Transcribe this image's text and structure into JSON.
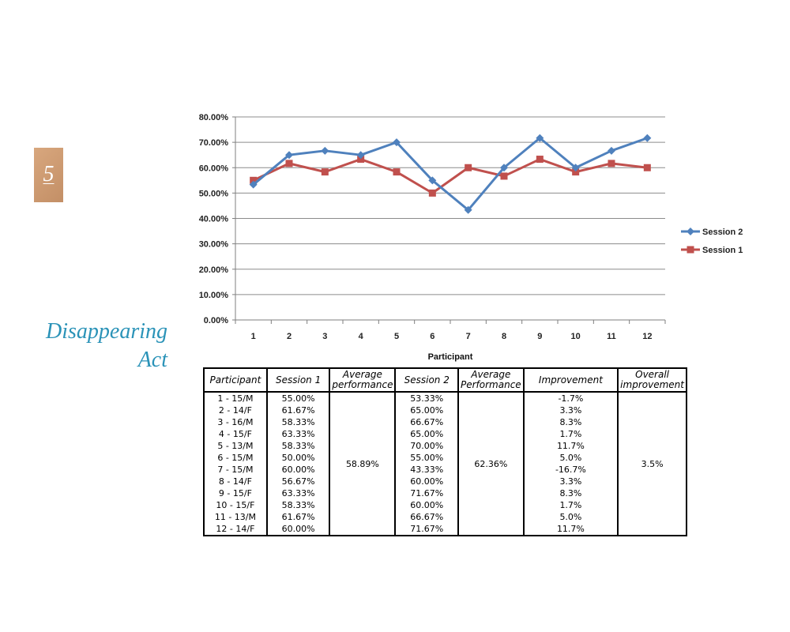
{
  "slide_number": "5",
  "title_lines": [
    "Disappearing",
    "Act"
  ],
  "colors": {
    "session2": "#4f81bd",
    "session1": "#c0504d",
    "title": "#2b93b8"
  },
  "chart_data": {
    "type": "line",
    "title": "",
    "xlabel": "Participant",
    "ylabel": "",
    "x": [
      "1",
      "2",
      "3",
      "4",
      "5",
      "6",
      "7",
      "8",
      "9",
      "10",
      "11",
      "12"
    ],
    "ylim": [
      0,
      80
    ],
    "ytick_step": 10,
    "ytick_labels": [
      "0.00%",
      "10.00%",
      "20.00%",
      "30.00%",
      "40.00%",
      "50.00%",
      "60.00%",
      "70.00%",
      "80.00%"
    ],
    "grid": true,
    "legend_position": "right",
    "series": [
      {
        "name": "Session 2",
        "color": "#4f81bd",
        "marker": "diamond",
        "values": [
          53.33,
          65.0,
          66.67,
          65.0,
          70.0,
          55.0,
          43.33,
          60.0,
          71.67,
          60.0,
          66.67,
          71.67
        ]
      },
      {
        "name": "Session 1",
        "color": "#c0504d",
        "marker": "square",
        "values": [
          55.0,
          61.67,
          58.33,
          63.33,
          58.33,
          50.0,
          60.0,
          56.67,
          63.33,
          58.33,
          61.67,
          60.0
        ]
      }
    ]
  },
  "table": {
    "headers": {
      "participant": "Participant",
      "session1": "Session 1",
      "avg1": [
        "Average",
        "performance"
      ],
      "session2": "Session 2",
      "avg2": [
        "Average",
        "Performance"
      ],
      "improvement": "Improvement",
      "overall": [
        "Overall",
        "improvement"
      ]
    },
    "rows": [
      {
        "participant": "1 - 15/M",
        "session1": "55.00%",
        "session2": "53.33%",
        "improvement": "-1.7%"
      },
      {
        "participant": "2 - 14/F",
        "session1": "61.67%",
        "session2": "65.00%",
        "improvement": "3.3%"
      },
      {
        "participant": "3 - 16/M",
        "session1": "58.33%",
        "session2": "66.67%",
        "improvement": "8.3%"
      },
      {
        "participant": "4 - 15/F",
        "session1": "63.33%",
        "session2": "65.00%",
        "improvement": "1.7%"
      },
      {
        "participant": "5 - 13/M",
        "session1": "58.33%",
        "session2": "70.00%",
        "improvement": "11.7%"
      },
      {
        "participant": "6 - 15/M",
        "session1": "50.00%",
        "session2": "55.00%",
        "improvement": "5.0%"
      },
      {
        "participant": "7 - 15/M",
        "session1": "60.00%",
        "session2": "43.33%",
        "improvement": "-16.7%"
      },
      {
        "participant": "8 - 14/F",
        "session1": "56.67%",
        "session2": "60.00%",
        "improvement": "3.3%"
      },
      {
        "participant": "9 - 15/F",
        "session1": "63.33%",
        "session2": "71.67%",
        "improvement": "8.3%"
      },
      {
        "participant": "10 - 15/F",
        "session1": "58.33%",
        "session2": "60.00%",
        "improvement": "1.7%"
      },
      {
        "participant": "11 - 13/M",
        "session1": "61.67%",
        "session2": "66.67%",
        "improvement": "5.0%"
      },
      {
        "participant": "12 - 14/F",
        "session1": "60.00%",
        "session2": "71.67%",
        "improvement": "11.7%"
      }
    ],
    "avg_session1": "58.89%",
    "avg_session2": "62.36%",
    "overall_improvement": "3.5%"
  }
}
